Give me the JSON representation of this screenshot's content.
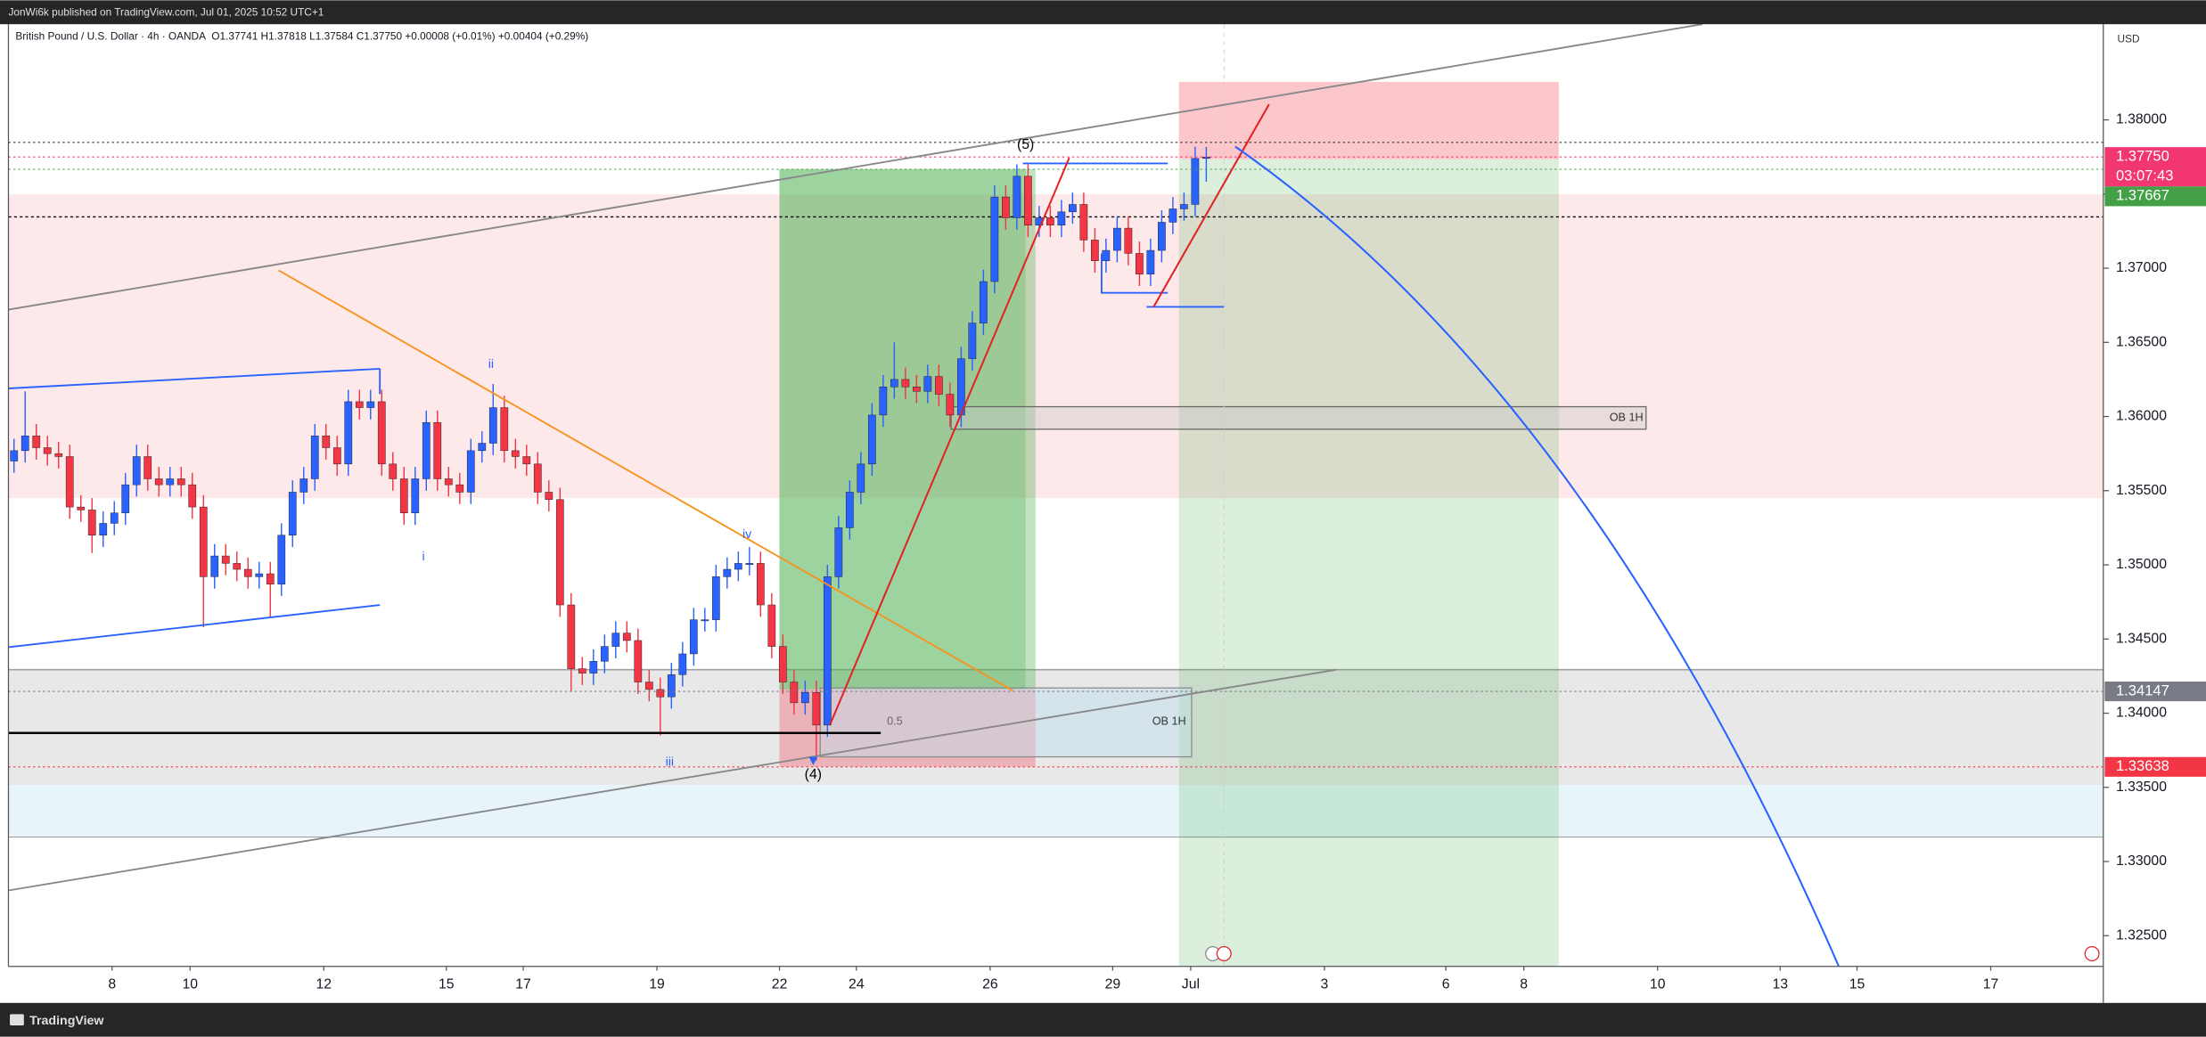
{
  "header": {
    "publisher": "JonWi6k published on TradingView.com, Jul 01, 2025 10:52 UTC+1",
    "footer": "TradingView"
  },
  "chart_data": {
    "type": "candlestick",
    "title": "British Pound / U.S. Dollar · 4h · OANDA",
    "legend_text": "O1.37741 H1.37818 L1.37584 C1.37750 +0.00008 (+0.01%) +0.00404 (+0.29%)",
    "currency": "USD",
    "up_color": "#2962ff",
    "down_color": "#f23645",
    "open": [
      1.357,
      1.3577,
      1.3587,
      1.3579,
      1.3575,
      1.3573,
      1.3539,
      1.3537,
      1.352,
      1.3528,
      1.3535,
      1.3554,
      1.3573,
      1.3558,
      1.3554,
      1.3558,
      1.3554,
      1.3539,
      1.3492,
      1.3506,
      1.3501,
      1.3497,
      1.3492,
      1.3494,
      1.3487,
      1.352,
      1.3549,
      1.3558,
      1.3587,
      1.3579,
      1.3568,
      1.361,
      1.3606,
      1.361,
      1.3568,
      1.3558,
      1.3535,
      1.3558,
      1.3596,
      1.3558,
      1.3554,
      1.3549,
      1.3577,
      1.3582,
      1.3606,
      1.3577,
      1.3573,
      1.3568,
      1.3549,
      1.3544,
      1.3473,
      1.343,
      1.3427,
      1.3435,
      1.3445,
      1.3454,
      1.3449,
      1.3421,
      1.3416,
      1.3411,
      1.3426,
      1.344,
      1.3463,
      1.3463,
      1.3492,
      1.3497,
      1.3501,
      1.3501,
      1.3473,
      1.3445,
      1.3421,
      1.3407,
      1.3414,
      1.3392,
      1.3492,
      1.3525,
      1.3549,
      1.3568,
      1.3601,
      1.362,
      1.3625,
      1.362,
      1.3617,
      1.3627,
      1.3615,
      1.3601,
      1.3639,
      1.3663,
      1.3691,
      1.3748,
      1.3734,
      1.3762,
      1.3729,
      1.3734,
      1.3729,
      1.3738,
      1.3743,
      1.3719,
      1.3705,
      1.3712,
      1.3727,
      1.371,
      1.3696,
      1.3712,
      1.3731,
      1.374,
      1.3743,
      1.37741
    ],
    "high": [
      1.3585,
      1.3617,
      1.3595,
      1.3587,
      1.3583,
      1.3581,
      1.3547,
      1.3545,
      1.3536,
      1.3543,
      1.3562,
      1.3581,
      1.3581,
      1.3566,
      1.3566,
      1.3566,
      1.3562,
      1.3547,
      1.3514,
      1.3514,
      1.3509,
      1.3505,
      1.3502,
      1.3502,
      1.3528,
      1.3557,
      1.3566,
      1.3595,
      1.3595,
      1.3587,
      1.3618,
      1.3618,
      1.3618,
      1.3618,
      1.3576,
      1.3566,
      1.3566,
      1.3604,
      1.3604,
      1.3566,
      1.3562,
      1.3585,
      1.359,
      1.3622,
      1.3614,
      1.3585,
      1.3581,
      1.3576,
      1.3557,
      1.3552,
      1.3481,
      1.3438,
      1.3443,
      1.3453,
      1.3462,
      1.3462,
      1.3457,
      1.3429,
      1.3424,
      1.3434,
      1.3448,
      1.3471,
      1.3471,
      1.35,
      1.3505,
      1.3509,
      1.3512,
      1.3509,
      1.3481,
      1.3453,
      1.3429,
      1.3422,
      1.3422,
      1.35,
      1.3533,
      1.3557,
      1.3576,
      1.3609,
      1.3628,
      1.365,
      1.3633,
      1.3628,
      1.3635,
      1.3635,
      1.3623,
      1.3647,
      1.3671,
      1.3699,
      1.3756,
      1.3756,
      1.377,
      1.377,
      1.3742,
      1.3742,
      1.3746,
      1.3751,
      1.3751,
      1.3727,
      1.372,
      1.3735,
      1.3735,
      1.3718,
      1.372,
      1.3739,
      1.3748,
      1.3751,
      1.3782,
      1.37818
    ],
    "low": [
      1.3562,
      1.3569,
      1.3571,
      1.3567,
      1.3565,
      1.3531,
      1.3529,
      1.3508,
      1.3512,
      1.352,
      1.3527,
      1.3546,
      1.355,
      1.3546,
      1.3546,
      1.3546,
      1.3531,
      1.3458,
      1.3484,
      1.3493,
      1.3489,
      1.3484,
      1.3484,
      1.3465,
      1.3479,
      1.3512,
      1.3541,
      1.355,
      1.3571,
      1.356,
      1.356,
      1.3598,
      1.3598,
      1.356,
      1.355,
      1.3527,
      1.3527,
      1.355,
      1.355,
      1.3546,
      1.3541,
      1.3541,
      1.3569,
      1.3574,
      1.3569,
      1.3565,
      1.356,
      1.3541,
      1.3536,
      1.3465,
      1.3415,
      1.3419,
      1.3419,
      1.3427,
      1.3437,
      1.3441,
      1.3413,
      1.3408,
      1.3385,
      1.3403,
      1.3418,
      1.3432,
      1.3455,
      1.3455,
      1.3484,
      1.3489,
      1.3493,
      1.3465,
      1.3437,
      1.3413,
      1.3399,
      1.3399,
      1.3368,
      1.3384,
      1.3484,
      1.3517,
      1.3541,
      1.356,
      1.3593,
      1.3612,
      1.3612,
      1.3609,
      1.3609,
      1.3607,
      1.3593,
      1.3593,
      1.3631,
      1.3655,
      1.3683,
      1.3726,
      1.3726,
      1.3721,
      1.3721,
      1.3721,
      1.3721,
      1.373,
      1.3711,
      1.3697,
      1.3697,
      1.3704,
      1.3702,
      1.3688,
      1.3688,
      1.3704,
      1.3723,
      1.3732,
      1.3735,
      1.37584
    ],
    "close": [
      1.3577,
      1.3587,
      1.3579,
      1.3575,
      1.3573,
      1.3539,
      1.3537,
      1.352,
      1.3528,
      1.3535,
      1.3554,
      1.3573,
      1.3558,
      1.3554,
      1.3558,
      1.3554,
      1.3539,
      1.3492,
      1.3506,
      1.3501,
      1.3497,
      1.3492,
      1.3494,
      1.3487,
      1.352,
      1.3549,
      1.3558,
      1.3587,
      1.3579,
      1.3568,
      1.361,
      1.3606,
      1.361,
      1.3568,
      1.3558,
      1.3535,
      1.3558,
      1.3596,
      1.3558,
      1.3554,
      1.3549,
      1.3577,
      1.3582,
      1.3606,
      1.3577,
      1.3573,
      1.3568,
      1.3549,
      1.3544,
      1.3473,
      1.343,
      1.3427,
      1.3435,
      1.3445,
      1.3454,
      1.3449,
      1.3421,
      1.3416,
      1.3411,
      1.3426,
      1.344,
      1.3463,
      1.3463,
      1.3492,
      1.3497,
      1.3501,
      1.3501,
      1.3473,
      1.3445,
      1.3421,
      1.3407,
      1.3414,
      1.3392,
      1.3492,
      1.3525,
      1.3549,
      1.3568,
      1.3601,
      1.362,
      1.3625,
      1.362,
      1.3617,
      1.3627,
      1.3615,
      1.3601,
      1.3639,
      1.3663,
      1.3691,
      1.3748,
      1.3734,
      1.3762,
      1.3729,
      1.3734,
      1.3729,
      1.3738,
      1.3743,
      1.3719,
      1.3705,
      1.3712,
      1.3727,
      1.371,
      1.3696,
      1.3712,
      1.3731,
      1.374,
      1.3743,
      1.3774,
      1.3775
    ],
    "xlim": [
      0,
      188
    ],
    "xticks": [
      {
        "value": 9.3,
        "label": "8"
      },
      {
        "value": 16.3,
        "label": "10"
      },
      {
        "value": 28.3,
        "label": "12"
      },
      {
        "value": 39.3,
        "label": "15"
      },
      {
        "value": 46.2,
        "label": "17"
      },
      {
        "value": 58.2,
        "label": "19"
      },
      {
        "value": 69.2,
        "label": "22"
      },
      {
        "value": 76.1,
        "label": "24"
      },
      {
        "value": 88.1,
        "label": "26"
      },
      {
        "value": 99.1,
        "label": "29"
      },
      {
        "value": 106.1,
        "label": "Jul"
      },
      {
        "value": 118.1,
        "label": "3"
      },
      {
        "value": 129,
        "label": "6"
      },
      {
        "value": 136,
        "label": "8"
      },
      {
        "value": 148,
        "label": "10"
      },
      {
        "value": 159,
        "label": "13"
      },
      {
        "value": 165.9,
        "label": "15"
      },
      {
        "value": 177.9,
        "label": "17"
      }
    ],
    "ylim": [
      1.32293,
      1.38645
    ],
    "yticks": [
      {
        "value": 1.325,
        "label": "1.32500"
      },
      {
        "value": 1.33,
        "label": "1.33000"
      },
      {
        "value": 1.335,
        "label": "1.33500"
      },
      {
        "value": 1.34,
        "label": "1.34000"
      },
      {
        "value": 1.345,
        "label": "1.34500"
      },
      {
        "value": 1.35,
        "label": "1.35000"
      },
      {
        "value": 1.355,
        "label": "1.35500"
      },
      {
        "value": 1.36,
        "label": "1.36000"
      },
      {
        "value": 1.365,
        "label": "1.36500"
      },
      {
        "value": 1.37,
        "label": "1.37000"
      },
      {
        "value": 1.375,
        "label": "1.37500"
      },
      {
        "value": 1.38,
        "label": "1.38000"
      }
    ],
    "price_markers": [
      {
        "value": 1.3775,
        "label": "1.37750",
        "sub": "03:07:43",
        "color": "#f23670"
      },
      {
        "value": 1.37667,
        "label": "1.37667",
        "color": "#43a047"
      },
      {
        "value": 1.34147,
        "label": "1.34147",
        "color": "#787b86"
      },
      {
        "value": 1.33638,
        "label": "1.33638",
        "color": "#f23645"
      }
    ],
    "annotations": [
      "ii",
      "i",
      "iii",
      "iv",
      "(5)",
      "(4)",
      "0.5",
      "OB 1H",
      "OB 1H"
    ]
  }
}
